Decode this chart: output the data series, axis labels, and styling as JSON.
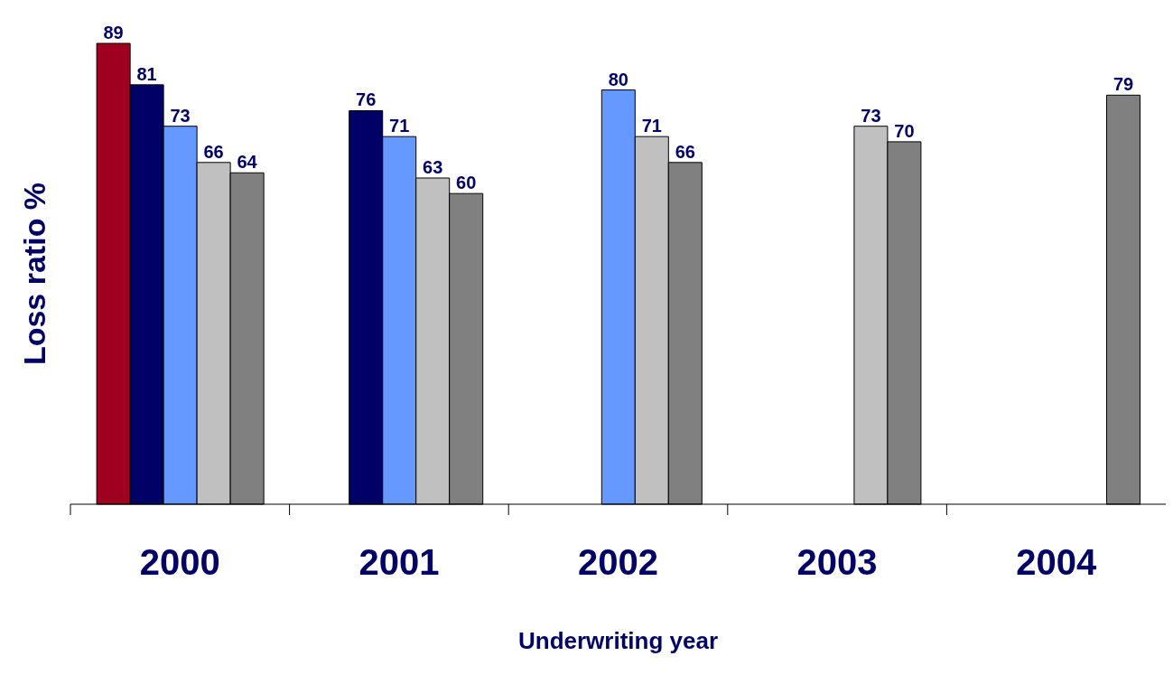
{
  "chart_data": {
    "type": "bar",
    "xlabel": "Underwriting year",
    "ylabel": "Loss ratio %",
    "categories": [
      "2000",
      "2001",
      "2002",
      "2003",
      "2004"
    ],
    "series": [
      {
        "color": "#a00020",
        "values": [
          89,
          null,
          null,
          null,
          null
        ]
      },
      {
        "color": "#000066",
        "values": [
          81,
          76,
          null,
          null,
          null
        ]
      },
      {
        "color": "#6699ff",
        "values": [
          73,
          71,
          80,
          null,
          null
        ]
      },
      {
        "color": "#c0c0c0",
        "values": [
          66,
          63,
          71,
          73,
          null
        ]
      },
      {
        "color": "#808080",
        "values": [
          64,
          60,
          66,
          70,
          79
        ]
      }
    ],
    "data_labels": true,
    "grid": false,
    "legend": false
  }
}
